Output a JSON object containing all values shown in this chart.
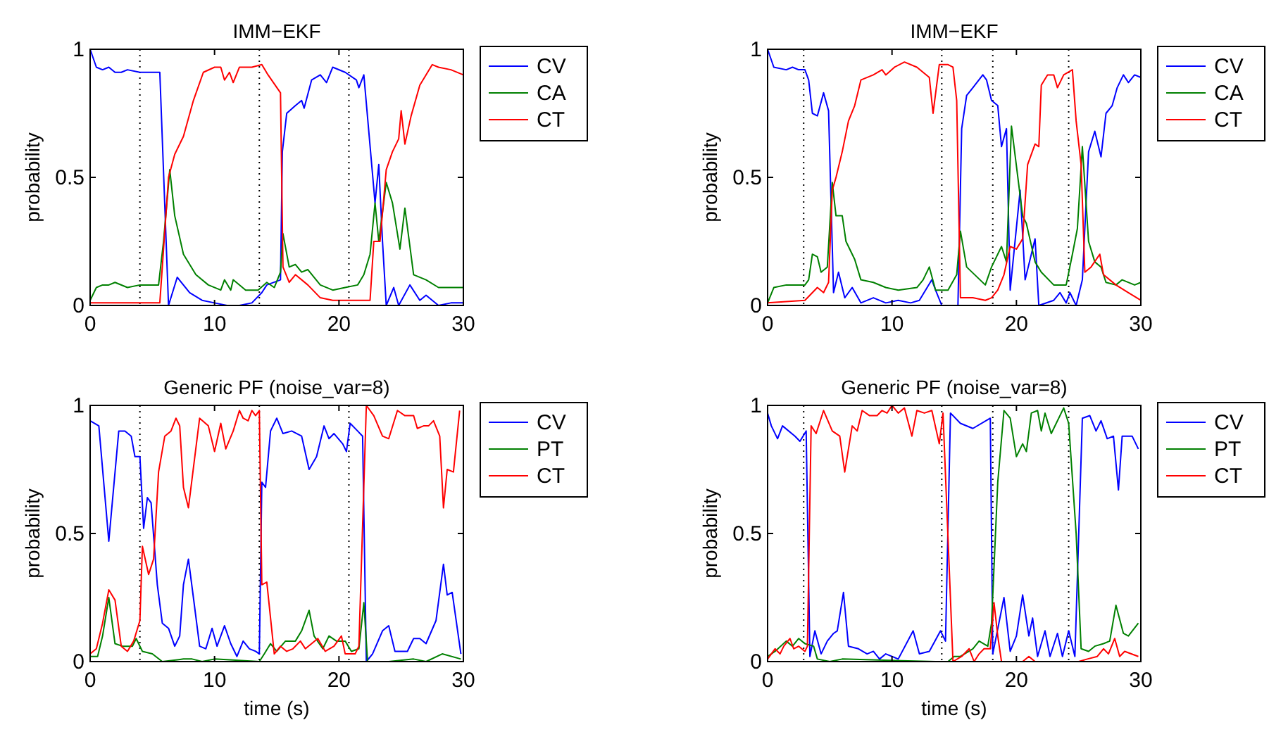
{
  "chart_data": [
    {
      "type": "line",
      "title": "IMM−EKF",
      "ylabel": "probability",
      "xlim": [
        0,
        30
      ],
      "xticks": [
        0,
        10,
        20,
        30
      ],
      "ylim": [
        0,
        1
      ],
      "yticks": [
        0,
        0.5,
        1
      ],
      "legend": "top right",
      "grid": false,
      "line_style": "solid",
      "marker": "none",
      "ref_lines": [
        {
          "axis": "x",
          "value": 4,
          "line_style": "dotted",
          "color": "#000000"
        },
        {
          "axis": "x",
          "value": 13.6,
          "line_style": "dotted",
          "color": "#000000"
        },
        {
          "axis": "x",
          "value": 20.8,
          "line_style": "dotted",
          "color": "#000000"
        }
      ],
      "series": [
        {
          "name": "CV",
          "color": "#0000ff",
          "x": [
            0,
            0.5,
            1,
            1.5,
            2,
            2.5,
            3,
            4,
            5,
            5.6,
            6.3,
            7,
            8,
            9,
            10,
            11,
            12,
            13,
            13.8,
            14.2,
            15.3,
            15.45,
            15.8,
            16.5,
            17,
            17.2,
            17.8,
            18.5,
            19,
            19.5,
            20.5,
            21.4,
            21.6,
            22,
            22.9,
            23.2,
            23.5,
            23.8,
            24.4,
            24.8,
            25.7,
            26.5,
            27,
            28,
            29,
            30
          ],
          "values": [
            1,
            0.93,
            0.92,
            0.93,
            0.91,
            0.91,
            0.92,
            0.91,
            0.91,
            0.91,
            0,
            0.11,
            0.05,
            0.02,
            0.01,
            0,
            0,
            0.01,
            0.05,
            0.08,
            0.1,
            0.6,
            0.75,
            0.78,
            0.8,
            0.77,
            0.88,
            0.9,
            0.87,
            0.93,
            0.91,
            0.88,
            0.85,
            0.9,
            0.4,
            0.55,
            0.25,
            0,
            0.07,
            0,
            0.08,
            0.02,
            0.04,
            0,
            0.01,
            0.01
          ]
        },
        {
          "name": "CA",
          "color": "#008000",
          "x": [
            0,
            0.5,
            1,
            1.5,
            2,
            3,
            4,
            5.5,
            5.9,
            6.4,
            6.8,
            7.5,
            8.5,
            9.5,
            10.5,
            10.8,
            11.3,
            11.5,
            12.5,
            13.5,
            14.2,
            14.8,
            15.3,
            15.5,
            16,
            16.5,
            17,
            17.5,
            18.5,
            19.5,
            20.5,
            21.5,
            22,
            22.5,
            22.9,
            23.2,
            23.8,
            24.3,
            24.9,
            25.3,
            26,
            27,
            28,
            29,
            30
          ],
          "values": [
            0.02,
            0.07,
            0.08,
            0.08,
            0.09,
            0.07,
            0.08,
            0.08,
            0.25,
            0.53,
            0.35,
            0.2,
            0.12,
            0.08,
            0.06,
            0.1,
            0.06,
            0.1,
            0.06,
            0.06,
            0.09,
            0.07,
            0.13,
            0.28,
            0.15,
            0.16,
            0.13,
            0.14,
            0.08,
            0.06,
            0.07,
            0.08,
            0.12,
            0.2,
            0.4,
            0.25,
            0.48,
            0.4,
            0.22,
            0.38,
            0.12,
            0.1,
            0.07,
            0.07,
            0.07
          ]
        },
        {
          "name": "CT",
          "color": "#ff0000",
          "x": [
            0,
            3,
            5.6,
            6.3,
            6.8,
            7.5,
            8.3,
            9.1,
            10,
            10.5,
            10.8,
            11.2,
            11.5,
            12,
            13,
            13.8,
            14.3,
            15.3,
            15.5,
            16,
            16.5,
            17.5,
            18.5,
            19.5,
            22.5,
            22.8,
            23.3,
            23.8,
            24.3,
            24.8,
            25,
            25.3,
            25.8,
            26.5,
            27.5,
            28,
            29,
            30
          ],
          "values": [
            0.01,
            0.01,
            0.01,
            0.5,
            0.59,
            0.66,
            0.8,
            0.91,
            0.93,
            0.93,
            0.88,
            0.91,
            0.87,
            0.93,
            0.93,
            0.94,
            0.9,
            0.83,
            0.15,
            0.09,
            0.12,
            0.08,
            0.03,
            0.02,
            0.02,
            0.25,
            0.25,
            0.53,
            0.6,
            0.65,
            0.76,
            0.63,
            0.74,
            0.86,
            0.94,
            0.93,
            0.92,
            0.9
          ]
        }
      ]
    },
    {
      "type": "line",
      "title": "IMM−EKF",
      "ylabel": "probability",
      "xlim": [
        0,
        30
      ],
      "xticks": [
        0,
        10,
        20,
        30
      ],
      "ylim": [
        0,
        1
      ],
      "yticks": [
        0,
        0.5,
        1
      ],
      "legend": "top right",
      "grid": false,
      "line_style": "solid",
      "marker": "none",
      "ref_lines": [
        {
          "axis": "x",
          "value": 2.9,
          "line_style": "dotted",
          "color": "#000000"
        },
        {
          "axis": "x",
          "value": 14,
          "line_style": "dotted",
          "color": "#000000"
        },
        {
          "axis": "x",
          "value": 18.1,
          "line_style": "dotted",
          "color": "#000000"
        },
        {
          "axis": "x",
          "value": 24.2,
          "line_style": "dotted",
          "color": "#000000"
        }
      ],
      "series": [
        {
          "name": "CV",
          "color": "#0000ff",
          "x": [
            0,
            0.5,
            1.5,
            2,
            2.5,
            3,
            3.3,
            3.6,
            4,
            4.5,
            4.9,
            5.3,
            5.7,
            6.2,
            6.8,
            7.5,
            8.5,
            9.5,
            10.5,
            11.5,
            12.2,
            13.2,
            13.5,
            14,
            15.3,
            15.6,
            16,
            16.5,
            17.3,
            17.6,
            18,
            18.5,
            18.8,
            19.2,
            19.5,
            20.3,
            20.7,
            21.5,
            21.8,
            23,
            23.5,
            24,
            24.3,
            24.8,
            25.3,
            25.8,
            26.3,
            26.8,
            27.2,
            27.7,
            28.1,
            28.6,
            29,
            29.5,
            30
          ],
          "values": [
            1,
            0.93,
            0.92,
            0.93,
            0.92,
            0.92,
            0.88,
            0.75,
            0.74,
            0.83,
            0.76,
            0.05,
            0.13,
            0.03,
            0.07,
            0.01,
            0.03,
            0.01,
            0.02,
            0.01,
            0.02,
            0.1,
            0.06,
            0,
            0,
            0.69,
            0.82,
            0.85,
            0.9,
            0.88,
            0.8,
            0.78,
            0.62,
            0.69,
            0.06,
            0.45,
            0.1,
            0.26,
            0,
            0.02,
            0.05,
            0.01,
            0.05,
            0,
            0.1,
            0.6,
            0.68,
            0.58,
            0.75,
            0.78,
            0.85,
            0.9,
            0.87,
            0.9,
            0.89
          ]
        },
        {
          "name": "CA",
          "color": "#008000",
          "x": [
            0,
            0.5,
            1.5,
            3,
            3.3,
            3.6,
            4,
            4.3,
            4.8,
            5.2,
            5.5,
            6,
            6.3,
            7,
            7.5,
            8.5,
            9.5,
            10.5,
            12,
            12.5,
            13,
            13.5,
            14.5,
            15.2,
            15.5,
            16,
            17.5,
            18,
            18.8,
            19.2,
            19.6,
            20.5,
            20.8,
            21.5,
            22,
            23,
            24,
            24.5,
            24.9,
            25.3,
            25.8,
            26.3,
            26.8,
            27.2,
            28,
            28.5,
            29.5,
            30
          ],
          "values": [
            0.01,
            0.07,
            0.08,
            0.08,
            0.1,
            0.2,
            0.19,
            0.13,
            0.15,
            0.48,
            0.35,
            0.35,
            0.25,
            0.18,
            0.1,
            0.09,
            0.07,
            0.06,
            0.07,
            0.1,
            0.15,
            0.06,
            0.06,
            0.12,
            0.29,
            0.15,
            0.08,
            0.15,
            0.23,
            0.17,
            0.7,
            0.35,
            0.32,
            0.17,
            0.13,
            0.08,
            0.08,
            0.2,
            0.3,
            0.62,
            0.25,
            0.17,
            0.15,
            0.09,
            0.08,
            0.1,
            0.08,
            0.09
          ]
        },
        {
          "name": "CT",
          "color": "#ff0000",
          "x": [
            0,
            3,
            4,
            4.5,
            4.9,
            5.2,
            5.5,
            6,
            6.5,
            7,
            7.5,
            8.5,
            9.2,
            9.5,
            10.2,
            11,
            12,
            13,
            13.3,
            13.8,
            14.5,
            14.9,
            15.2,
            15.5,
            16.5,
            17.5,
            18,
            18.5,
            19,
            19.5,
            20,
            20.5,
            20.9,
            21.5,
            21.8,
            22,
            22.5,
            23,
            23.3,
            23.8,
            24.5,
            24.8,
            25.2,
            25.5,
            26,
            26.7,
            27,
            28,
            29,
            30
          ],
          "values": [
            0.01,
            0.02,
            0.07,
            0.05,
            0.09,
            0.45,
            0.5,
            0.6,
            0.72,
            0.78,
            0.88,
            0.9,
            0.92,
            0.9,
            0.93,
            0.95,
            0.93,
            0.89,
            0.75,
            0.94,
            0.94,
            0.93,
            0.8,
            0.03,
            0.03,
            0.02,
            0.03,
            0.06,
            0.12,
            0.23,
            0.22,
            0.26,
            0.55,
            0.63,
            0.62,
            0.86,
            0.9,
            0.9,
            0.85,
            0.9,
            0.92,
            0.72,
            0.55,
            0.13,
            0.15,
            0.2,
            0.12,
            0.08,
            0.05,
            0.02
          ]
        }
      ]
    },
    {
      "type": "line",
      "title": "Generic PF (noise_var=8)",
      "xlabel": "time (s)",
      "ylabel": "probability",
      "xlim": [
        0,
        30
      ],
      "xticks": [
        0,
        10,
        20,
        30
      ],
      "ylim": [
        0,
        1
      ],
      "yticks": [
        0,
        0.5,
        1
      ],
      "legend": "top right",
      "grid": false,
      "line_style": "solid",
      "marker": "none",
      "ref_lines": [
        {
          "axis": "x",
          "value": 4,
          "line_style": "dotted",
          "color": "#000000"
        },
        {
          "axis": "x",
          "value": 13.6,
          "line_style": "dotted",
          "color": "#000000"
        },
        {
          "axis": "x",
          "value": 20.8,
          "line_style": "dotted",
          "color": "#000000"
        }
      ],
      "series": [
        {
          "name": "CV",
          "color": "#0000ff",
          "x": [
            0,
            0.7,
            1.5,
            2.3,
            2.8,
            3.3,
            3.6,
            4,
            4.3,
            4.6,
            4.9,
            5.4,
            5.8,
            6.3,
            6.8,
            7.2,
            7.5,
            7.9,
            8.3,
            8.8,
            9.3,
            9.8,
            10.2,
            10.8,
            11.3,
            11.8,
            12.3,
            12.8,
            13.3,
            13.6,
            13.8,
            14.1,
            14.5,
            15,
            15.5,
            16.2,
            17,
            17.6,
            18.2,
            18.8,
            19.2,
            19.6,
            20.3,
            20.6,
            20.9,
            21.5,
            21.9,
            22.2,
            22.7,
            23.5,
            24,
            24.5,
            25.5,
            26,
            26.5,
            27,
            27.8,
            28.4,
            28.7,
            29.1,
            29.8
          ],
          "values": [
            0.94,
            0.92,
            0.47,
            0.9,
            0.9,
            0.88,
            0.8,
            0.8,
            0.52,
            0.64,
            0.62,
            0.3,
            0.15,
            0.13,
            0.06,
            0.1,
            0.3,
            0.4,
            0.25,
            0.06,
            0.05,
            0.13,
            0.06,
            0.14,
            0.07,
            0.02,
            0.08,
            0.05,
            0.04,
            0.03,
            0.7,
            0.68,
            0.9,
            0.95,
            0.89,
            0.9,
            0.88,
            0.75,
            0.8,
            0.92,
            0.87,
            0.89,
            0.85,
            0.82,
            0.93,
            0.9,
            0.88,
            0,
            0.03,
            0.12,
            0.14,
            0.04,
            0.04,
            0.09,
            0.09,
            0.07,
            0.16,
            0.38,
            0.26,
            0.27,
            0.03
          ]
        },
        {
          "name": "PT",
          "color": "#008000",
          "x": [
            0,
            0.6,
            1,
            1.5,
            2,
            2.6,
            3.4,
            3.7,
            4.2,
            5,
            5.8,
            7.5,
            8.2,
            9,
            10,
            13.6,
            14,
            14.5,
            15,
            15.7,
            16.5,
            17,
            17.6,
            18,
            18.7,
            19.2,
            19.8,
            20.5,
            21,
            21.6,
            22,
            22.3,
            24,
            26,
            27,
            28.3,
            29.8
          ],
          "values": [
            0.02,
            0.02,
            0.1,
            0.25,
            0.07,
            0.06,
            0.06,
            0.09,
            0.04,
            0.03,
            0,
            0.01,
            0.01,
            0,
            0.01,
            0,
            0.03,
            0.07,
            0.04,
            0.08,
            0.08,
            0.12,
            0.2,
            0.1,
            0.05,
            0.1,
            0.08,
            0.08,
            0.04,
            0.05,
            0.23,
            0,
            0,
            0.01,
            0,
            0.03,
            0.01
          ]
        },
        {
          "name": "CT",
          "color": "#ff0000",
          "x": [
            0,
            0.5,
            1,
            1.5,
            2,
            2.5,
            3,
            3.5,
            4,
            4.2,
            4.7,
            5.1,
            5.5,
            6,
            6.5,
            6.9,
            7.2,
            7.5,
            7.9,
            8.8,
            9.5,
            10,
            10.5,
            10.9,
            11.5,
            12,
            12.3,
            12.7,
            13,
            13.3,
            13.6,
            13.8,
            14.2,
            14.8,
            15.3,
            15.8,
            16.3,
            16.9,
            17.3,
            17.8,
            18.3,
            18.9,
            19.6,
            20.2,
            20.5,
            21.3,
            21.6,
            22.2,
            22.8,
            23.5,
            24,
            24.7,
            25.3,
            26,
            26.3,
            26.8,
            27.2,
            27.6,
            28.1,
            28.4,
            28.7,
            29.2,
            29.7
          ],
          "values": [
            0.03,
            0.05,
            0.15,
            0.28,
            0.24,
            0.06,
            0.04,
            0.08,
            0.16,
            0.45,
            0.34,
            0.4,
            0.74,
            0.88,
            0.9,
            0.95,
            0.92,
            0.68,
            0.6,
            0.95,
            0.92,
            0.82,
            0.93,
            0.83,
            0.9,
            0.98,
            0.95,
            0.94,
            0.98,
            0.96,
            0.98,
            0.3,
            0.31,
            0.03,
            0.06,
            0.04,
            0.05,
            0.08,
            0.05,
            0.07,
            0.09,
            0.04,
            0.06,
            0.1,
            0.03,
            0.03,
            0.06,
            1,
            0.96,
            0.88,
            0.87,
            0.98,
            0.96,
            0.96,
            0.91,
            0.92,
            0.92,
            0.94,
            0.88,
            0.6,
            0.75,
            0.74,
            0.98
          ]
        }
      ]
    },
    {
      "type": "line",
      "title": "Generic PF (noise_var=8)",
      "xlabel": "time (s)",
      "ylabel": "probability",
      "xlim": [
        0,
        30
      ],
      "xticks": [
        0,
        10,
        20,
        30
      ],
      "ylim": [
        0,
        1
      ],
      "yticks": [
        0,
        0.5,
        1
      ],
      "legend": "top right",
      "grid": false,
      "line_style": "solid",
      "marker": "none",
      "ref_lines": [
        {
          "axis": "x",
          "value": 2.9,
          "line_style": "dotted",
          "color": "#000000"
        },
        {
          "axis": "x",
          "value": 14,
          "line_style": "dotted",
          "color": "#000000"
        },
        {
          "axis": "x",
          "value": 18.1,
          "line_style": "dotted",
          "color": "#000000"
        },
        {
          "axis": "x",
          "value": 24.2,
          "line_style": "dotted",
          "color": "#000000"
        }
      ],
      "series": [
        {
          "name": "CV",
          "color": "#0000ff",
          "x": [
            0,
            0.3,
            0.8,
            1.2,
            2.2,
            2.6,
            3.1,
            3.4,
            3.8,
            4.3,
            4.8,
            5.3,
            5.6,
            6.1,
            6.5,
            7.3,
            8,
            8.5,
            9,
            9.5,
            10.5,
            11.7,
            12.2,
            13,
            13.9,
            14.3,
            14.7,
            15.5,
            16.5,
            17.9,
            18.1,
            19,
            19.5,
            20,
            20.5,
            21,
            21.3,
            21.7,
            22.3,
            22.7,
            23.3,
            23.7,
            24.2,
            24.7,
            25.3,
            25.9,
            26.4,
            26.8,
            27.3,
            27.8,
            28.2,
            28.5,
            29.3,
            29.8
          ],
          "values": [
            0.97,
            0.92,
            0.87,
            0.92,
            0.88,
            0.86,
            0.9,
            0.02,
            0.12,
            0.03,
            0.08,
            0.11,
            0.12,
            0.27,
            0.06,
            0.05,
            0.03,
            0.04,
            0.01,
            0.03,
            0.01,
            0.12,
            0.03,
            0.04,
            0.12,
            0.08,
            0.97,
            0.93,
            0.91,
            0.95,
            0.03,
            0.25,
            0.04,
            0.1,
            0.26,
            0.1,
            0.17,
            0.02,
            0.12,
            0.02,
            0.11,
            0.02,
            0.12,
            0.02,
            0.95,
            0.96,
            0.9,
            0.94,
            0.87,
            0.88,
            0.67,
            0.88,
            0.88,
            0.83
          ]
        },
        {
          "name": "PT",
          "color": "#008000",
          "x": [
            0,
            0.6,
            1.5,
            2,
            2.5,
            3,
            3.7,
            4,
            5,
            6,
            13.5,
            14.5,
            15,
            15.5,
            16.5,
            17,
            17.7,
            18,
            18.5,
            19,
            19.5,
            20,
            20.5,
            20.8,
            21.2,
            21.7,
            22,
            22.3,
            22.8,
            23.8,
            24.2,
            24.8,
            25.2,
            25.8,
            26.3,
            27,
            27.5,
            28,
            28.6,
            29,
            29.8
          ],
          "values": [
            0.02,
            0.04,
            0.08,
            0.06,
            0.09,
            0.07,
            0.06,
            0.01,
            0,
            0.01,
            0,
            0,
            0.02,
            0.02,
            0.05,
            0.08,
            0.06,
            0.15,
            0.7,
            0.98,
            0.95,
            0.8,
            0.85,
            0.82,
            0.97,
            0.98,
            0.9,
            0.97,
            0.89,
            0.99,
            0.93,
            0.5,
            0.05,
            0.04,
            0.06,
            0.07,
            0.08,
            0.22,
            0.11,
            0.1,
            0.15
          ]
        },
        {
          "name": "CT",
          "color": "#ff0000",
          "x": [
            0,
            0.6,
            1,
            1.3,
            1.8,
            2.1,
            2.5,
            3,
            3.2,
            3.5,
            3.9,
            4.5,
            5.2,
            5.8,
            6.2,
            6.8,
            7.2,
            7.6,
            8.2,
            8.8,
            9.2,
            9.6,
            10,
            10.5,
            11,
            11.6,
            12,
            12.6,
            13.2,
            13.8,
            14.1,
            14.9,
            15.6,
            16.2,
            16.6,
            17,
            17.4,
            17.9,
            18.2,
            18.5,
            18.8,
            20.5,
            21,
            21.5,
            25,
            25.7,
            26.5,
            27,
            27.4,
            27.9,
            28.3,
            28.7,
            29.8
          ],
          "values": [
            0.01,
            0.05,
            0.03,
            0.06,
            0.09,
            0.05,
            0.06,
            0.04,
            0.06,
            0.92,
            0.89,
            0.98,
            0.9,
            0.88,
            0.74,
            0.92,
            0.9,
            0.98,
            0.96,
            0.96,
            0.98,
            0.97,
            1,
            0.97,
            0.99,
            0.88,
            0.98,
            0.97,
            0.98,
            0.85,
            0.97,
            0,
            0.02,
            0.05,
            0,
            0.03,
            0.05,
            0.05,
            0.23,
            0.1,
            0,
            0,
            0.02,
            0,
            0,
            0.01,
            0.02,
            0.05,
            0.03,
            0.09,
            0.02,
            0.04,
            0.02
          ]
        }
      ]
    }
  ]
}
